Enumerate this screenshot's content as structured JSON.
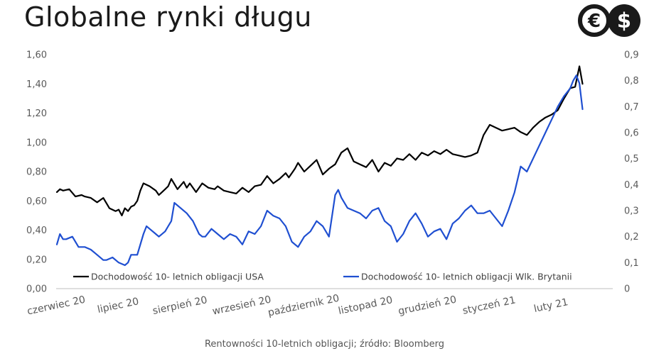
{
  "header": {
    "title": "Globalne rynki długu"
  },
  "logo": {
    "icon": "euro-dollar-logo",
    "euro_glyph": "€",
    "dollar_glyph": "$",
    "color": "#1a1a1a"
  },
  "caption": "Rentowności 10-letnich obligacji; źródło: Bloomberg",
  "chart_data": {
    "type": "line",
    "title": "Globalne rynki długu",
    "categories": [
      "czerwiec 20",
      "lipiec 20",
      "sierpień 20",
      "wrzesień 20",
      "październik 20",
      "listopad 20",
      "grudzień 20",
      "styczeń 21",
      "luty 21"
    ],
    "y_left": {
      "ylim": [
        0,
        1.6
      ],
      "ticks": [
        "0,00",
        "0,20",
        "0,40",
        "0,60",
        "0,80",
        "1,00",
        "1,20",
        "1,40",
        "1,60"
      ]
    },
    "y_right": {
      "ylim": [
        0,
        0.9
      ],
      "ticks": [
        "0",
        "0,1",
        "0,2",
        "0,3",
        "0,4",
        "0,5",
        "0,6",
        "0,7",
        "0,8",
        "0,9"
      ]
    },
    "legend_position": "bottom",
    "grid": false,
    "x_unit": "month index (0 = czerwiec 20)",
    "series": [
      {
        "name": "Dochodowość 10- letnich obligacji USA",
        "axis": "left",
        "color": "#000000",
        "x": [
          0.0,
          0.05,
          0.1,
          0.2,
          0.3,
          0.4,
          0.45,
          0.55,
          0.65,
          0.75,
          0.85,
          0.95,
          1.0,
          1.05,
          1.1,
          1.15,
          1.2,
          1.25,
          1.3,
          1.35,
          1.4,
          1.5,
          1.6,
          1.65,
          1.7,
          1.75,
          1.8,
          1.85,
          1.95,
          2.05,
          2.1,
          2.15,
          2.25,
          2.35,
          2.45,
          2.55,
          2.6,
          2.7,
          2.8,
          2.9,
          3.0,
          3.1,
          3.2,
          3.3,
          3.4,
          3.5,
          3.6,
          3.7,
          3.75,
          3.8,
          3.85,
          3.9,
          4.0,
          4.1,
          4.2,
          4.3,
          4.4,
          4.5,
          4.6,
          4.7,
          4.8,
          4.9,
          5.0,
          5.1,
          5.2,
          5.3,
          5.4,
          5.5,
          5.6,
          5.7,
          5.8,
          5.9,
          6.0,
          6.1,
          6.2,
          6.3,
          6.4,
          6.5,
          6.6,
          6.7,
          6.8,
          6.9,
          7.0,
          7.1,
          7.2,
          7.3,
          7.4,
          7.5,
          7.6,
          7.7,
          7.8,
          7.9,
          8.0,
          8.1,
          8.2,
          8.3,
          8.38,
          8.45,
          8.5
        ],
        "values": [
          0.66,
          0.68,
          0.67,
          0.68,
          0.63,
          0.64,
          0.63,
          0.62,
          0.59,
          0.62,
          0.55,
          0.53,
          0.54,
          0.5,
          0.55,
          0.53,
          0.56,
          0.57,
          0.6,
          0.67,
          0.72,
          0.7,
          0.67,
          0.64,
          0.66,
          0.68,
          0.7,
          0.75,
          0.68,
          0.73,
          0.69,
          0.72,
          0.66,
          0.72,
          0.69,
          0.68,
          0.7,
          0.67,
          0.66,
          0.65,
          0.69,
          0.66,
          0.7,
          0.71,
          0.77,
          0.72,
          0.75,
          0.79,
          0.76,
          0.79,
          0.82,
          0.86,
          0.8,
          0.84,
          0.88,
          0.78,
          0.82,
          0.85,
          0.93,
          0.96,
          0.87,
          0.85,
          0.83,
          0.88,
          0.8,
          0.86,
          0.84,
          0.89,
          0.88,
          0.92,
          0.88,
          0.93,
          0.91,
          0.94,
          0.92,
          0.95,
          0.92,
          0.91,
          0.9,
          0.91,
          0.93,
          1.05,
          1.12,
          1.1,
          1.08,
          1.09,
          1.1,
          1.07,
          1.05,
          1.1,
          1.14,
          1.17,
          1.19,
          1.22,
          1.3,
          1.37,
          1.38,
          1.52,
          1.4
        ]
      },
      {
        "name": "Dochodowość 10- letnich obligacji Wlk. Brytanii",
        "axis": "right",
        "color": "#1f4fd1",
        "x": [
          0.0,
          0.05,
          0.1,
          0.15,
          0.25,
          0.35,
          0.45,
          0.55,
          0.65,
          0.75,
          0.8,
          0.9,
          1.0,
          1.1,
          1.15,
          1.2,
          1.3,
          1.4,
          1.45,
          1.5,
          1.6,
          1.65,
          1.75,
          1.8,
          1.85,
          1.9,
          2.0,
          2.1,
          2.2,
          2.3,
          2.35,
          2.4,
          2.5,
          2.6,
          2.7,
          2.8,
          2.9,
          3.0,
          3.1,
          3.2,
          3.3,
          3.4,
          3.5,
          3.6,
          3.7,
          3.8,
          3.9,
          4.0,
          4.1,
          4.2,
          4.3,
          4.4,
          4.5,
          4.55,
          4.6,
          4.7,
          4.8,
          4.9,
          5.0,
          5.1,
          5.2,
          5.3,
          5.4,
          5.5,
          5.6,
          5.7,
          5.8,
          5.9,
          6.0,
          6.1,
          6.2,
          6.3,
          6.4,
          6.5,
          6.6,
          6.7,
          6.8,
          6.9,
          7.0,
          7.1,
          7.2,
          7.3,
          7.4,
          7.5,
          7.6,
          7.7,
          7.8,
          7.9,
          8.0,
          8.1,
          8.2,
          8.3,
          8.35,
          8.4,
          8.45,
          8.5
        ],
        "values": [
          0.17,
          0.21,
          0.19,
          0.19,
          0.2,
          0.16,
          0.16,
          0.15,
          0.13,
          0.11,
          0.11,
          0.12,
          0.1,
          0.09,
          0.1,
          0.13,
          0.13,
          0.21,
          0.24,
          0.23,
          0.21,
          0.2,
          0.22,
          0.24,
          0.26,
          0.33,
          0.31,
          0.29,
          0.26,
          0.21,
          0.2,
          0.2,
          0.23,
          0.21,
          0.19,
          0.21,
          0.2,
          0.17,
          0.22,
          0.21,
          0.24,
          0.3,
          0.28,
          0.27,
          0.24,
          0.18,
          0.16,
          0.2,
          0.22,
          0.26,
          0.24,
          0.2,
          0.36,
          0.38,
          0.35,
          0.31,
          0.3,
          0.29,
          0.27,
          0.3,
          0.31,
          0.26,
          0.24,
          0.18,
          0.21,
          0.26,
          0.29,
          0.25,
          0.2,
          0.22,
          0.23,
          0.19,
          0.25,
          0.27,
          0.3,
          0.32,
          0.29,
          0.29,
          0.3,
          0.27,
          0.24,
          0.3,
          0.37,
          0.47,
          0.45,
          0.5,
          0.55,
          0.6,
          0.65,
          0.7,
          0.74,
          0.77,
          0.8,
          0.82,
          0.79,
          0.69
        ]
      }
    ]
  }
}
